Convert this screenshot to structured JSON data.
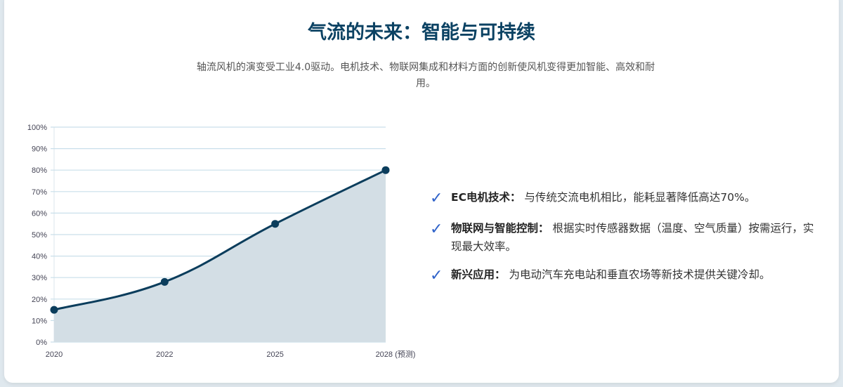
{
  "title": "气流的未来：智能与可持续",
  "subtitle": "轴流风机的演变受工业4.0驱动。电机技术、物联网集成和材料方面的创新使风机变得更加智能、高效和耐用。",
  "chart_data": {
    "type": "area",
    "categories": [
      "2020",
      "2022",
      "2025",
      "2028 (预测)"
    ],
    "values": [
      15,
      28,
      55,
      80
    ],
    "ylim": [
      0,
      100
    ],
    "yticks": [
      "0%",
      "10%",
      "20%",
      "30%",
      "40%",
      "50%",
      "60%",
      "70%",
      "80%",
      "90%",
      "100%"
    ],
    "grid": true,
    "line_color": "#0b3d5c",
    "fill_color": "#d3dee5"
  },
  "features": [
    {
      "label": "EC电机技术：",
      "text": "与传统交流电机相比，能耗显著降低高达70%。"
    },
    {
      "label": "物联网与智能控制：",
      "text": "根据实时传感器数据（温度、空气质量）按需运行，实现最大效率。"
    },
    {
      "label": "新兴应用：",
      "text": "为电动汽车充电站和垂直农场等新技术提供关键冷却。"
    }
  ],
  "icons": {
    "check": "check-icon"
  }
}
